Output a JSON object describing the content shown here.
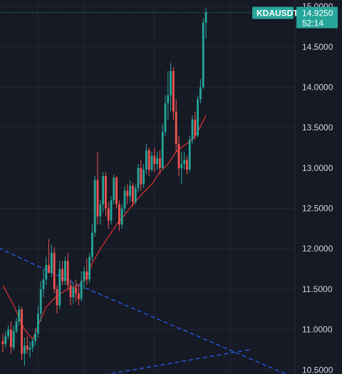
{
  "chart_data": {
    "type": "candlestick",
    "symbol": "KDAUSDT",
    "last_price": "14.9250",
    "countdown": "52:14",
    "y_ticks": [
      "15.0000",
      "14.5000",
      "14.0000",
      "13.5000",
      "13.0000",
      "12.5000",
      "12.0000",
      "11.5000",
      "11.0000",
      "10.5000"
    ],
    "ylim": [
      10.45,
      15.08
    ],
    "grid": true,
    "colors": {
      "up": "#26a69a",
      "down": "#ef5350",
      "ma": "#d32f2f",
      "trend": "#2962ff",
      "background": "#161a25",
      "grid": "#232733",
      "badge": "#26a69a"
    },
    "candles": [
      [
        10.86,
        10.95,
        10.72,
        10.82
      ],
      [
        10.82,
        10.98,
        10.78,
        10.92
      ],
      [
        10.92,
        11.05,
        10.88,
        11.0
      ],
      [
        11.0,
        11.1,
        10.7,
        10.78
      ],
      [
        10.78,
        11.05,
        10.74,
        10.98
      ],
      [
        10.98,
        11.15,
        10.95,
        11.1
      ],
      [
        11.1,
        11.3,
        11.05,
        11.25
      ],
      [
        11.25,
        11.28,
        10.62,
        10.7
      ],
      [
        10.7,
        10.9,
        10.55,
        10.8
      ],
      [
        10.8,
        10.92,
        10.7,
        10.75
      ],
      [
        10.75,
        10.85,
        10.65,
        10.78
      ],
      [
        10.78,
        10.9,
        10.72,
        10.86
      ],
      [
        10.86,
        11.02,
        10.8,
        10.95
      ],
      [
        10.95,
        11.3,
        10.9,
        11.2
      ],
      [
        11.2,
        11.6,
        11.1,
        11.5
      ],
      [
        11.5,
        11.75,
        11.4,
        11.62
      ],
      [
        11.62,
        11.9,
        11.55,
        11.8
      ],
      [
        11.8,
        12.12,
        11.72,
        11.7
      ],
      [
        11.7,
        12.05,
        11.65,
        11.95
      ],
      [
        11.95,
        12.02,
        11.45,
        11.5
      ],
      [
        11.5,
        11.55,
        11.2,
        11.3
      ],
      [
        11.3,
        11.85,
        11.25,
        11.75
      ],
      [
        11.75,
        11.85,
        11.55,
        11.6
      ],
      [
        11.6,
        11.9,
        11.55,
        11.85
      ],
      [
        11.85,
        11.95,
        11.5,
        11.55
      ],
      [
        11.55,
        11.62,
        11.3,
        11.4
      ],
      [
        11.4,
        11.58,
        11.32,
        11.52
      ],
      [
        11.52,
        11.62,
        11.35,
        11.45
      ],
      [
        11.45,
        11.55,
        11.3,
        11.38
      ],
      [
        11.38,
        11.72,
        11.35,
        11.6
      ],
      [
        11.6,
        11.78,
        11.5,
        11.72
      ],
      [
        11.72,
        11.88,
        11.55,
        11.62
      ],
      [
        11.62,
        11.95,
        11.58,
        11.9
      ],
      [
        11.9,
        12.3,
        11.85,
        12.2
      ],
      [
        12.2,
        12.9,
        12.15,
        12.85
      ],
      [
        12.85,
        13.2,
        12.3,
        12.4
      ],
      [
        12.4,
        12.6,
        12.3,
        12.55
      ],
      [
        12.55,
        12.95,
        12.45,
        12.9
      ],
      [
        12.9,
        12.95,
        12.4,
        12.5
      ],
      [
        12.5,
        12.58,
        12.25,
        12.35
      ],
      [
        12.35,
        12.65,
        12.3,
        12.6
      ],
      [
        12.6,
        12.92,
        12.55,
        12.88
      ],
      [
        12.88,
        12.9,
        12.5,
        12.55
      ],
      [
        12.55,
        12.6,
        12.22,
        12.3
      ],
      [
        12.3,
        12.55,
        12.25,
        12.5
      ],
      [
        12.5,
        12.78,
        12.45,
        12.72
      ],
      [
        12.72,
        12.8,
        12.55,
        12.65
      ],
      [
        12.65,
        12.85,
        12.58,
        12.78
      ],
      [
        12.78,
        12.82,
        12.52,
        12.58
      ],
      [
        12.58,
        12.8,
        12.55,
        12.75
      ],
      [
        12.75,
        13.05,
        12.7,
        13.0
      ],
      [
        13.0,
        13.1,
        12.72,
        12.8
      ],
      [
        12.8,
        13.05,
        12.75,
        12.98
      ],
      [
        12.98,
        13.3,
        12.92,
        13.22
      ],
      [
        13.22,
        13.25,
        12.9,
        12.98
      ],
      [
        12.98,
        13.2,
        12.95,
        13.15
      ],
      [
        13.15,
        13.25,
        12.95,
        13.05
      ],
      [
        13.05,
        13.2,
        12.98,
        13.12
      ],
      [
        13.12,
        13.22,
        12.92,
        13.0
      ],
      [
        13.0,
        13.55,
        12.98,
        13.45
      ],
      [
        13.45,
        13.9,
        13.4,
        13.8
      ],
      [
        13.8,
        14.2,
        13.6,
        13.9
      ],
      [
        13.9,
        14.3,
        13.7,
        14.2
      ],
      [
        14.2,
        14.25,
        13.6,
        13.7
      ],
      [
        13.7,
        13.85,
        13.2,
        13.3
      ],
      [
        13.3,
        13.4,
        12.9,
        13.0
      ],
      [
        13.0,
        13.2,
        12.8,
        13.05
      ],
      [
        13.05,
        13.2,
        12.98,
        13.1
      ],
      [
        13.1,
        13.15,
        12.92,
        12.98
      ],
      [
        12.98,
        13.4,
        12.95,
        13.35
      ],
      [
        13.35,
        13.65,
        13.3,
        13.6
      ],
      [
        13.6,
        13.7,
        13.35,
        13.4
      ],
      [
        13.4,
        13.9,
        13.38,
        13.85
      ],
      [
        13.85,
        14.1,
        13.8,
        14.0
      ],
      [
        14.0,
        14.85,
        13.98,
        14.8
      ],
      [
        14.8,
        14.98,
        14.6,
        14.93
      ]
    ],
    "ma_line": [
      [
        0,
        11.55
      ],
      [
        4,
        11.3
      ],
      [
        8,
        11.0
      ],
      [
        11,
        10.88
      ],
      [
        13,
        11.05
      ],
      [
        16,
        11.28
      ],
      [
        20,
        11.42
      ],
      [
        24,
        11.5
      ],
      [
        28,
        11.55
      ],
      [
        31,
        11.65
      ],
      [
        33,
        11.82
      ],
      [
        36,
        12.0
      ],
      [
        39,
        12.15
      ],
      [
        42,
        12.3
      ],
      [
        45,
        12.42
      ],
      [
        48,
        12.55
      ],
      [
        52,
        12.7
      ],
      [
        55,
        12.8
      ],
      [
        58,
        12.95
      ],
      [
        61,
        13.05
      ],
      [
        64,
        13.2
      ],
      [
        67,
        13.28
      ],
      [
        70,
        13.35
      ],
      [
        72,
        13.45
      ],
      [
        75,
        13.65
      ]
    ],
    "trend_lines": [
      [
        [
          -4,
          12.05
        ],
        [
          28,
          11.55
        ]
      ],
      [
        [
          28,
          11.55
        ],
        [
          108,
          10.4
        ]
      ],
      [
        [
          22,
          10.35
        ],
        [
          91,
          10.75
        ]
      ]
    ]
  }
}
